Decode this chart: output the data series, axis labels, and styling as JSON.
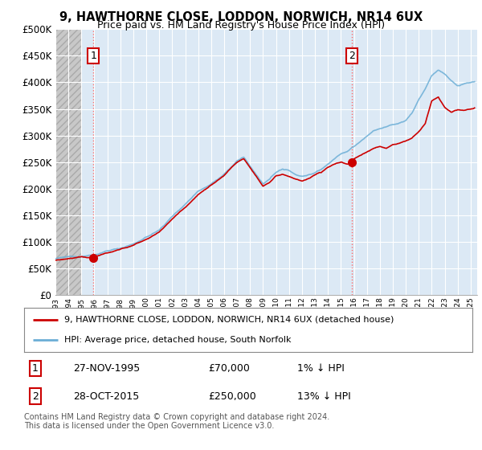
{
  "title": "9, HAWTHORNE CLOSE, LODDON, NORWICH, NR14 6UX",
  "subtitle": "Price paid vs. HM Land Registry's House Price Index (HPI)",
  "legend_line1": "9, HAWTHORNE CLOSE, LODDON, NORWICH, NR14 6UX (detached house)",
  "legend_line2": "HPI: Average price, detached house, South Norfolk",
  "purchase1_label": "1",
  "purchase1_date": "27-NOV-1995",
  "purchase1_price": "£70,000",
  "purchase1_hpi": "1% ↓ HPI",
  "purchase2_label": "2",
  "purchase2_date": "28-OCT-2015",
  "purchase2_price": "£250,000",
  "purchase2_hpi": "13% ↓ HPI",
  "copyright": "Contains HM Land Registry data © Crown copyright and database right 2024.\nThis data is licensed under the Open Government Licence v3.0.",
  "hpi_color": "#6baed6",
  "price_color": "#cc0000",
  "purchase1_x": 1995.92,
  "purchase1_y": 70000,
  "purchase2_x": 2015.83,
  "purchase2_y": 250000,
  "ylim_min": 0,
  "ylim_max": 500000,
  "xlim_min": 1993.0,
  "xlim_max": 2025.5,
  "yticks": [
    0,
    50000,
    100000,
    150000,
    200000,
    250000,
    300000,
    350000,
    400000,
    450000,
    500000
  ],
  "xticks": [
    1993,
    1994,
    1995,
    1996,
    1997,
    1998,
    1999,
    2000,
    2001,
    2002,
    2003,
    2004,
    2005,
    2006,
    2007,
    2008,
    2009,
    2010,
    2011,
    2012,
    2013,
    2014,
    2015,
    2016,
    2017,
    2018,
    2019,
    2020,
    2021,
    2022,
    2023,
    2024,
    2025
  ],
  "chart_bg": "#dce9f5",
  "hatch_bg": "#d0d0d0",
  "grid_color": "#ffffff"
}
